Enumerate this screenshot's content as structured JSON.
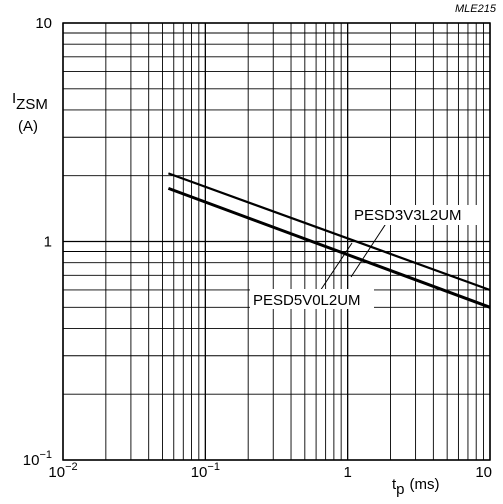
{
  "chart_data": {
    "type": "line",
    "figure_id": "MLE215",
    "x_axis": {
      "label_main": "t",
      "label_sub": "p",
      "label_unit": "(ms)",
      "scale": "log",
      "range": [
        0.01,
        10
      ],
      "ticks": [
        {
          "value": 0.01,
          "base": "10",
          "exp": "−2"
        },
        {
          "value": 0.1,
          "base": "10",
          "exp": "−1"
        },
        {
          "value": 1,
          "base": "1",
          "exp": ""
        },
        {
          "value": 10,
          "base": "10",
          "exp": ""
        }
      ]
    },
    "y_axis": {
      "label_main": "I",
      "label_sub": "ZSM",
      "label_unit": "(A)",
      "scale": "log",
      "range": [
        0.1,
        10
      ],
      "ticks": [
        {
          "value": 0.1,
          "base": "10",
          "exp": "−1"
        },
        {
          "value": 1,
          "base": "1",
          "exp": ""
        },
        {
          "value": 10,
          "base": "10",
          "exp": ""
        }
      ]
    },
    "grid": true,
    "series": [
      {
        "name": "PESD3V3L2UM",
        "x": [
          0.055,
          10
        ],
        "y": [
          2.05,
          0.6
        ],
        "line_color": "#000000"
      },
      {
        "name": "PESD5V0L2UM",
        "x": [
          0.055,
          10
        ],
        "y": [
          1.75,
          0.5
        ],
        "line_color": "#000000"
      }
    ]
  }
}
